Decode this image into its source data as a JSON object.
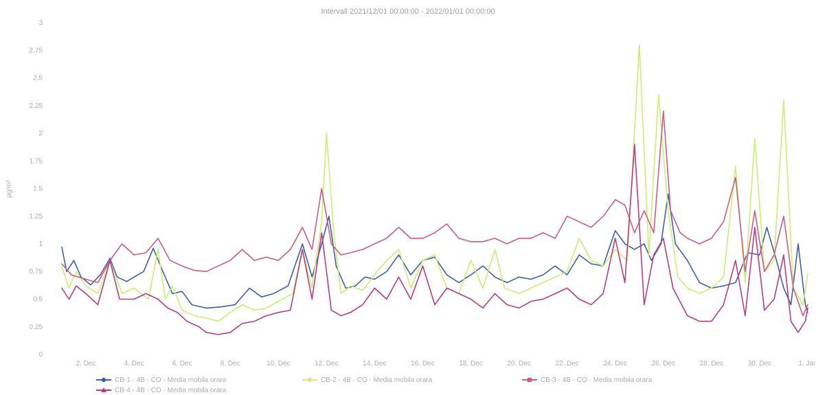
{
  "chart_data": {
    "type": "line",
    "title": "Intervall 2021/12/01 00:00:00 - 2022/01/01 00:00:00",
    "ylabel": "µg/m³",
    "xlabel": "",
    "ylim": [
      0,
      3
    ],
    "xlim_days": [
      1,
      32
    ],
    "grid": false,
    "legend_position": "bottom",
    "y_ticks": [
      "0",
      "0.25",
      "0.5",
      "0.75",
      "1",
      "1.25",
      "1.5",
      "1.75",
      "2",
      "2.25",
      "2.5",
      "2.75",
      "3"
    ],
    "x_ticks": [
      {
        "d": 2,
        "label": "2. Dec"
      },
      {
        "d": 4,
        "label": "4. Dec"
      },
      {
        "d": 6,
        "label": "6. Dec"
      },
      {
        "d": 8,
        "label": "8. Dec"
      },
      {
        "d": 10,
        "label": "10. Dec"
      },
      {
        "d": 12,
        "label": "12. Dec"
      },
      {
        "d": 14,
        "label": "14. Dec"
      },
      {
        "d": 16,
        "label": "16. Dec"
      },
      {
        "d": 18,
        "label": "18. Dec"
      },
      {
        "d": 20,
        "label": "20. Dec"
      },
      {
        "d": 22,
        "label": "22. Dec"
      },
      {
        "d": 24,
        "label": "24. Dec"
      },
      {
        "d": 26,
        "label": "26. Dec"
      },
      {
        "d": 28,
        "label": "28. Dec"
      },
      {
        "d": 30,
        "label": "30. Dec"
      },
      {
        "d": 32,
        "label": "1. Jan"
      }
    ],
    "series": [
      {
        "name": "CB-1 - 4B - CO - Media mobila orara",
        "color": "#3a5fb0",
        "marker": "circle",
        "points": [
          [
            1,
            0.97
          ],
          [
            1.2,
            0.75
          ],
          [
            1.5,
            0.85
          ],
          [
            1.8,
            0.7
          ],
          [
            2.2,
            0.63
          ],
          [
            2.6,
            0.72
          ],
          [
            3,
            0.87
          ],
          [
            3.3,
            0.7
          ],
          [
            3.7,
            0.66
          ],
          [
            4,
            0.7
          ],
          [
            4.4,
            0.75
          ],
          [
            4.8,
            0.96
          ],
          [
            5.2,
            0.75
          ],
          [
            5.6,
            0.55
          ],
          [
            6,
            0.57
          ],
          [
            6.4,
            0.45
          ],
          [
            7,
            0.42
          ],
          [
            7.6,
            0.43
          ],
          [
            8.2,
            0.45
          ],
          [
            8.8,
            0.6
          ],
          [
            9.3,
            0.52
          ],
          [
            9.8,
            0.55
          ],
          [
            10.4,
            0.62
          ],
          [
            11,
            1.0
          ],
          [
            11.4,
            0.7
          ],
          [
            11.8,
            1.0
          ],
          [
            12.1,
            1.25
          ],
          [
            12.4,
            0.8
          ],
          [
            12.8,
            0.6
          ],
          [
            13.2,
            0.62
          ],
          [
            13.6,
            0.7
          ],
          [
            14,
            0.68
          ],
          [
            14.5,
            0.75
          ],
          [
            15,
            0.9
          ],
          [
            15.5,
            0.72
          ],
          [
            16,
            0.85
          ],
          [
            16.5,
            0.88
          ],
          [
            17,
            0.72
          ],
          [
            17.5,
            0.65
          ],
          [
            18,
            0.72
          ],
          [
            18.5,
            0.8
          ],
          [
            19,
            0.7
          ],
          [
            19.5,
            0.65
          ],
          [
            20,
            0.7
          ],
          [
            20.5,
            0.68
          ],
          [
            21,
            0.72
          ],
          [
            21.5,
            0.8
          ],
          [
            22,
            0.72
          ],
          [
            22.5,
            0.9
          ],
          [
            23,
            0.82
          ],
          [
            23.5,
            0.8
          ],
          [
            24,
            1.12
          ],
          [
            24.4,
            1.0
          ],
          [
            24.8,
            0.95
          ],
          [
            25.2,
            1.0
          ],
          [
            25.5,
            0.85
          ],
          [
            25.9,
            1.0
          ],
          [
            26.2,
            1.45
          ],
          [
            26.5,
            1.0
          ],
          [
            27,
            0.85
          ],
          [
            27.5,
            0.65
          ],
          [
            28,
            0.6
          ],
          [
            28.5,
            0.62
          ],
          [
            29,
            0.65
          ],
          [
            29.5,
            0.92
          ],
          [
            30,
            0.9
          ],
          [
            30.3,
            1.15
          ],
          [
            30.7,
            0.85
          ],
          [
            31,
            0.6
          ],
          [
            31.3,
            0.45
          ],
          [
            31.6,
            1.0
          ],
          [
            31.9,
            0.45
          ],
          [
            32,
            0.38
          ]
        ]
      },
      {
        "name": "CB-2 - 4B - CO - Media mobila orara",
        "color": "#c8ef70",
        "marker": "diamond",
        "points": [
          [
            1,
            0.8
          ],
          [
            1.3,
            0.6
          ],
          [
            1.6,
            0.75
          ],
          [
            2,
            0.62
          ],
          [
            2.5,
            0.55
          ],
          [
            3,
            0.85
          ],
          [
            3.5,
            0.55
          ],
          [
            4,
            0.6
          ],
          [
            4.6,
            0.5
          ],
          [
            5,
            0.95
          ],
          [
            5.3,
            0.5
          ],
          [
            5.6,
            0.62
          ],
          [
            6,
            0.4
          ],
          [
            6.5,
            0.35
          ],
          [
            7,
            0.33
          ],
          [
            7.5,
            0.3
          ],
          [
            8,
            0.38
          ],
          [
            8.5,
            0.45
          ],
          [
            9,
            0.4
          ],
          [
            9.5,
            0.42
          ],
          [
            10,
            0.48
          ],
          [
            10.6,
            0.55
          ],
          [
            11,
            0.95
          ],
          [
            11.4,
            0.6
          ],
          [
            11.8,
            1.2
          ],
          [
            12,
            2.0
          ],
          [
            12.3,
            1.1
          ],
          [
            12.6,
            0.55
          ],
          [
            13,
            0.62
          ],
          [
            13.5,
            0.58
          ],
          [
            14,
            0.72
          ],
          [
            14.5,
            0.85
          ],
          [
            15,
            0.95
          ],
          [
            15.5,
            0.6
          ],
          [
            16,
            0.85
          ],
          [
            16.5,
            0.9
          ],
          [
            17,
            0.6
          ],
          [
            17.5,
            0.55
          ],
          [
            18,
            0.85
          ],
          [
            18.5,
            0.6
          ],
          [
            19,
            0.95
          ],
          [
            19.4,
            0.6
          ],
          [
            20,
            0.55
          ],
          [
            20.5,
            0.6
          ],
          [
            21,
            0.65
          ],
          [
            21.5,
            0.7
          ],
          [
            22,
            0.75
          ],
          [
            22.5,
            1.05
          ],
          [
            23,
            0.85
          ],
          [
            23.5,
            0.8
          ],
          [
            24,
            0.95
          ],
          [
            24.5,
            0.85
          ],
          [
            25,
            2.8
          ],
          [
            25.4,
            0.9
          ],
          [
            25.8,
            2.35
          ],
          [
            26.2,
            1.3
          ],
          [
            26.6,
            0.7
          ],
          [
            27,
            0.6
          ],
          [
            27.5,
            0.55
          ],
          [
            28,
            0.6
          ],
          [
            28.5,
            0.7
          ],
          [
            29,
            1.7
          ],
          [
            29.4,
            0.65
          ],
          [
            29.8,
            1.95
          ],
          [
            30.2,
            0.75
          ],
          [
            30.6,
            0.85
          ],
          [
            31,
            2.3
          ],
          [
            31.4,
            0.6
          ],
          [
            31.8,
            0.45
          ],
          [
            32,
            0.73
          ]
        ]
      },
      {
        "name": "CB-3 - 4B - CO - Media mobila orara",
        "color": "#d05a82",
        "marker": "square",
        "points": [
          [
            1,
            0.82
          ],
          [
            1.4,
            0.72
          ],
          [
            2,
            0.68
          ],
          [
            2.5,
            0.65
          ],
          [
            3,
            0.85
          ],
          [
            3.5,
            1.0
          ],
          [
            4,
            0.9
          ],
          [
            4.5,
            0.92
          ],
          [
            5,
            1.05
          ],
          [
            5.5,
            0.85
          ],
          [
            6,
            0.8
          ],
          [
            6.5,
            0.76
          ],
          [
            7,
            0.75
          ],
          [
            7.5,
            0.8
          ],
          [
            8,
            0.85
          ],
          [
            8.5,
            0.95
          ],
          [
            9,
            0.85
          ],
          [
            9.5,
            0.88
          ],
          [
            10,
            0.85
          ],
          [
            10.5,
            0.95
          ],
          [
            11,
            1.15
          ],
          [
            11.4,
            0.95
          ],
          [
            11.8,
            1.5
          ],
          [
            12.2,
            1.0
          ],
          [
            12.6,
            0.9
          ],
          [
            13,
            0.92
          ],
          [
            13.5,
            0.95
          ],
          [
            14,
            1.0
          ],
          [
            14.5,
            1.05
          ],
          [
            15,
            1.15
          ],
          [
            15.5,
            1.05
          ],
          [
            16,
            1.05
          ],
          [
            16.5,
            1.1
          ],
          [
            17,
            1.18
          ],
          [
            17.5,
            1.05
          ],
          [
            18,
            1.02
          ],
          [
            18.5,
            1.02
          ],
          [
            19,
            1.05
          ],
          [
            19.5,
            1.0
          ],
          [
            20,
            1.05
          ],
          [
            20.5,
            1.05
          ],
          [
            21,
            1.1
          ],
          [
            21.5,
            1.05
          ],
          [
            22,
            1.25
          ],
          [
            22.5,
            1.2
          ],
          [
            23,
            1.15
          ],
          [
            23.5,
            1.25
          ],
          [
            24,
            1.4
          ],
          [
            24.4,
            1.35
          ],
          [
            24.8,
            1.1
          ],
          [
            25.2,
            1.3
          ],
          [
            25.6,
            1.1
          ],
          [
            26,
            2.2
          ],
          [
            26.3,
            1.3
          ],
          [
            26.7,
            1.1
          ],
          [
            27,
            1.05
          ],
          [
            27.5,
            1.0
          ],
          [
            28,
            1.05
          ],
          [
            28.5,
            1.2
          ],
          [
            29,
            1.6
          ],
          [
            29.4,
            0.75
          ],
          [
            29.8,
            1.3
          ],
          [
            30.2,
            0.75
          ],
          [
            30.6,
            0.9
          ],
          [
            31,
            1.25
          ],
          [
            31.4,
            0.6
          ],
          [
            31.8,
            0.35
          ],
          [
            32,
            0.45
          ]
        ]
      },
      {
        "name": "CB-4 - 4B - CO - Media mobila orara",
        "color": "#b83a84",
        "marker": "triangle",
        "points": [
          [
            1,
            0.6
          ],
          [
            1.3,
            0.5
          ],
          [
            1.6,
            0.62
          ],
          [
            2,
            0.55
          ],
          [
            2.5,
            0.45
          ],
          [
            3,
            0.85
          ],
          [
            3.4,
            0.5
          ],
          [
            4,
            0.5
          ],
          [
            4.5,
            0.55
          ],
          [
            5,
            0.5
          ],
          [
            5.4,
            0.42
          ],
          [
            5.8,
            0.38
          ],
          [
            6.2,
            0.3
          ],
          [
            6.7,
            0.25
          ],
          [
            7,
            0.2
          ],
          [
            7.5,
            0.18
          ],
          [
            8,
            0.2
          ],
          [
            8.5,
            0.28
          ],
          [
            9,
            0.3
          ],
          [
            9.5,
            0.35
          ],
          [
            10,
            0.38
          ],
          [
            10.5,
            0.4
          ],
          [
            11,
            0.95
          ],
          [
            11.4,
            0.5
          ],
          [
            11.8,
            1.1
          ],
          [
            12.2,
            0.4
          ],
          [
            12.6,
            0.35
          ],
          [
            13,
            0.38
          ],
          [
            13.5,
            0.45
          ],
          [
            14,
            0.6
          ],
          [
            14.5,
            0.5
          ],
          [
            15,
            0.7
          ],
          [
            15.5,
            0.5
          ],
          [
            16,
            0.8
          ],
          [
            16.5,
            0.45
          ],
          [
            17,
            0.6
          ],
          [
            17.5,
            0.55
          ],
          [
            18,
            0.5
          ],
          [
            18.5,
            0.42
          ],
          [
            19,
            0.55
          ],
          [
            19.5,
            0.45
          ],
          [
            20,
            0.42
          ],
          [
            20.5,
            0.48
          ],
          [
            21,
            0.5
          ],
          [
            21.5,
            0.55
          ],
          [
            22,
            0.6
          ],
          [
            22.5,
            0.5
          ],
          [
            23,
            0.45
          ],
          [
            23.5,
            0.55
          ],
          [
            24,
            1.05
          ],
          [
            24.4,
            0.65
          ],
          [
            24.8,
            1.9
          ],
          [
            25.2,
            0.45
          ],
          [
            25.6,
            0.9
          ],
          [
            26,
            1.05
          ],
          [
            26.4,
            0.6
          ],
          [
            27,
            0.35
          ],
          [
            27.5,
            0.3
          ],
          [
            28,
            0.3
          ],
          [
            28.5,
            0.45
          ],
          [
            29,
            0.85
          ],
          [
            29.4,
            0.35
          ],
          [
            29.8,
            1.15
          ],
          [
            30.2,
            0.4
          ],
          [
            30.6,
            0.5
          ],
          [
            31,
            0.9
          ],
          [
            31.3,
            0.3
          ],
          [
            31.6,
            0.2
          ],
          [
            31.9,
            0.3
          ],
          [
            32,
            0.42
          ]
        ]
      }
    ]
  }
}
